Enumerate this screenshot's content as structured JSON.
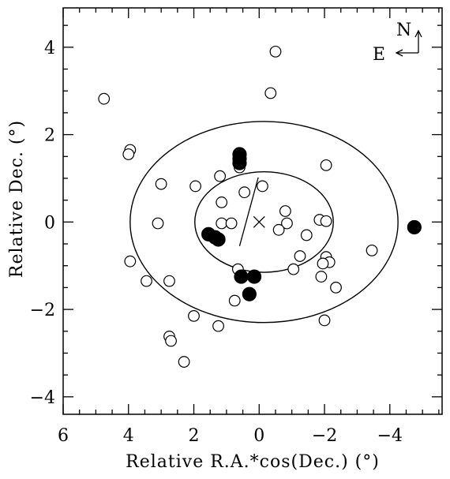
{
  "chart_data": {
    "type": "scatter",
    "xlabel": "Relative R.A.*cos(Dec.) (°)",
    "ylabel": "Relative Dec. (°)",
    "xlim": [
      6,
      -5.6
    ],
    "ylim": [
      -4.4,
      4.9
    ],
    "x_ticks": [
      6,
      4,
      2,
      0,
      -2,
      -4
    ],
    "x_tick_labels": [
      "6",
      "4",
      "2",
      "0",
      "−2",
      "−4"
    ],
    "y_ticks": [
      4,
      2,
      0,
      -2,
      -4
    ],
    "y_tick_labels": [
      "4",
      "2",
      "0",
      "−2",
      "−4"
    ],
    "grid": false,
    "legend": "none",
    "compass": {
      "north": "N",
      "east": "E"
    },
    "center_marker": {
      "x": 0,
      "y": 0
    },
    "axis_line": {
      "x1": 0.6,
      "y1": -0.55,
      "x2": -0.6,
      "y2": 0.55
    },
    "ellipses": [
      {
        "cx": -0.15,
        "cy": 0.0,
        "a": 2.12,
        "b": 1.15,
        "angle_deg": 47
      },
      {
        "cx": -0.15,
        "cy": 0.0,
        "a": 4.1,
        "b": 2.3,
        "angle_deg": 47
      }
    ],
    "series": [
      {
        "marker": "open-circle",
        "points": [
          [
            4.75,
            2.82
          ],
          [
            -0.5,
            3.9
          ],
          [
            -0.35,
            2.95
          ],
          [
            3.95,
            1.65
          ],
          [
            4.0,
            1.55
          ],
          [
            -2.05,
            1.3
          ],
          [
            0.6,
            1.25
          ],
          [
            1.2,
            1.05
          ],
          [
            3.0,
            0.87
          ],
          [
            1.95,
            0.82
          ],
          [
            -0.1,
            0.82
          ],
          [
            0.45,
            0.68
          ],
          [
            1.15,
            0.45
          ],
          [
            -0.8,
            0.25
          ],
          [
            3.1,
            -0.03
          ],
          [
            1.15,
            -0.03
          ],
          [
            0.85,
            -0.03
          ],
          [
            -0.85,
            -0.03
          ],
          [
            -1.85,
            0.05
          ],
          [
            -2.05,
            0.02
          ],
          [
            -0.6,
            -0.18
          ],
          [
            -1.45,
            -0.3
          ],
          [
            -3.45,
            -0.65
          ],
          [
            -1.25,
            -0.78
          ],
          [
            -2.05,
            -0.8
          ],
          [
            3.95,
            -0.9
          ],
          [
            -2.15,
            -0.92
          ],
          [
            -1.95,
            -0.95
          ],
          [
            -1.05,
            -1.08
          ],
          [
            0.65,
            -1.08
          ],
          [
            3.45,
            -1.35
          ],
          [
            2.75,
            -1.35
          ],
          [
            -1.9,
            -1.25
          ],
          [
            -2.35,
            -1.5
          ],
          [
            0.75,
            -1.8
          ],
          [
            2.0,
            -2.15
          ],
          [
            -2.0,
            -2.25
          ],
          [
            1.25,
            -2.38
          ],
          [
            2.75,
            -2.62
          ],
          [
            2.7,
            -2.72
          ],
          [
            2.3,
            -3.2
          ]
        ]
      },
      {
        "marker": "filled-circle",
        "points": [
          [
            0.6,
            1.55
          ],
          [
            0.6,
            1.45
          ],
          [
            0.6,
            1.35
          ],
          [
            1.55,
            -0.28
          ],
          [
            1.35,
            -0.35
          ],
          [
            1.25,
            -0.4
          ],
          [
            0.55,
            -1.25
          ],
          [
            0.15,
            -1.25
          ],
          [
            0.3,
            -1.65
          ],
          [
            -4.75,
            -0.12
          ]
        ]
      }
    ]
  }
}
